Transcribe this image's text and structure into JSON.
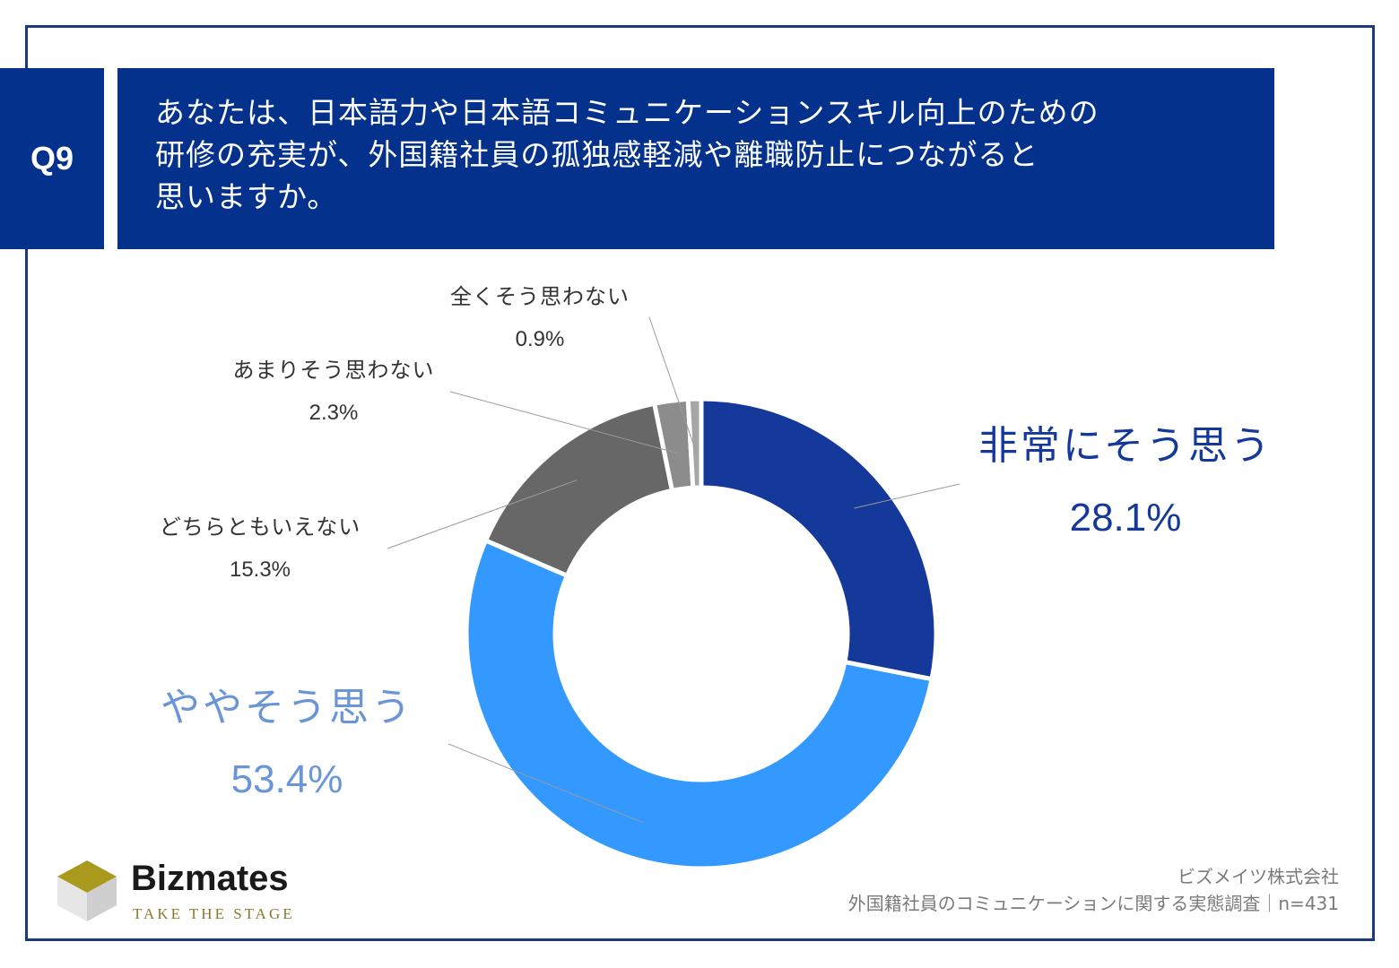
{
  "question": {
    "number": "Q9",
    "lines": [
      "あなたは、日本語力や日本語コミュニケーションスキル向上のための",
      "研修の充実が、外国籍社員の孤独感軽減や離職防止につながると",
      "思いますか。"
    ]
  },
  "chart_data": {
    "type": "pie",
    "donut": true,
    "categories": [
      "非常にそう思う",
      "ややそう思う",
      "どちらともいえない",
      "あまりそう思わない",
      "全くそう思わない"
    ],
    "values": [
      28.1,
      53.4,
      15.3,
      2.3,
      0.9
    ],
    "value_labels": [
      "28.1%",
      "53.4%",
      "15.3%",
      "2.3%",
      "0.9%"
    ],
    "colors": [
      "#14399a",
      "#3399ff",
      "#676767",
      "#8c8c8c",
      "#a6a6a6"
    ],
    "label_colors": [
      "#14399a",
      "#6a96d8",
      "#333333",
      "#333333",
      "#333333"
    ],
    "start": "12 o'clock",
    "direction": "clockwise"
  },
  "footer": {
    "logo_name": "Bizmates",
    "logo_tagline": "TAKE THE STAGE",
    "company": "ビズメイツ株式会社",
    "survey": "外国籍社員のコミュニケーションに関する実態調査｜n=431"
  }
}
